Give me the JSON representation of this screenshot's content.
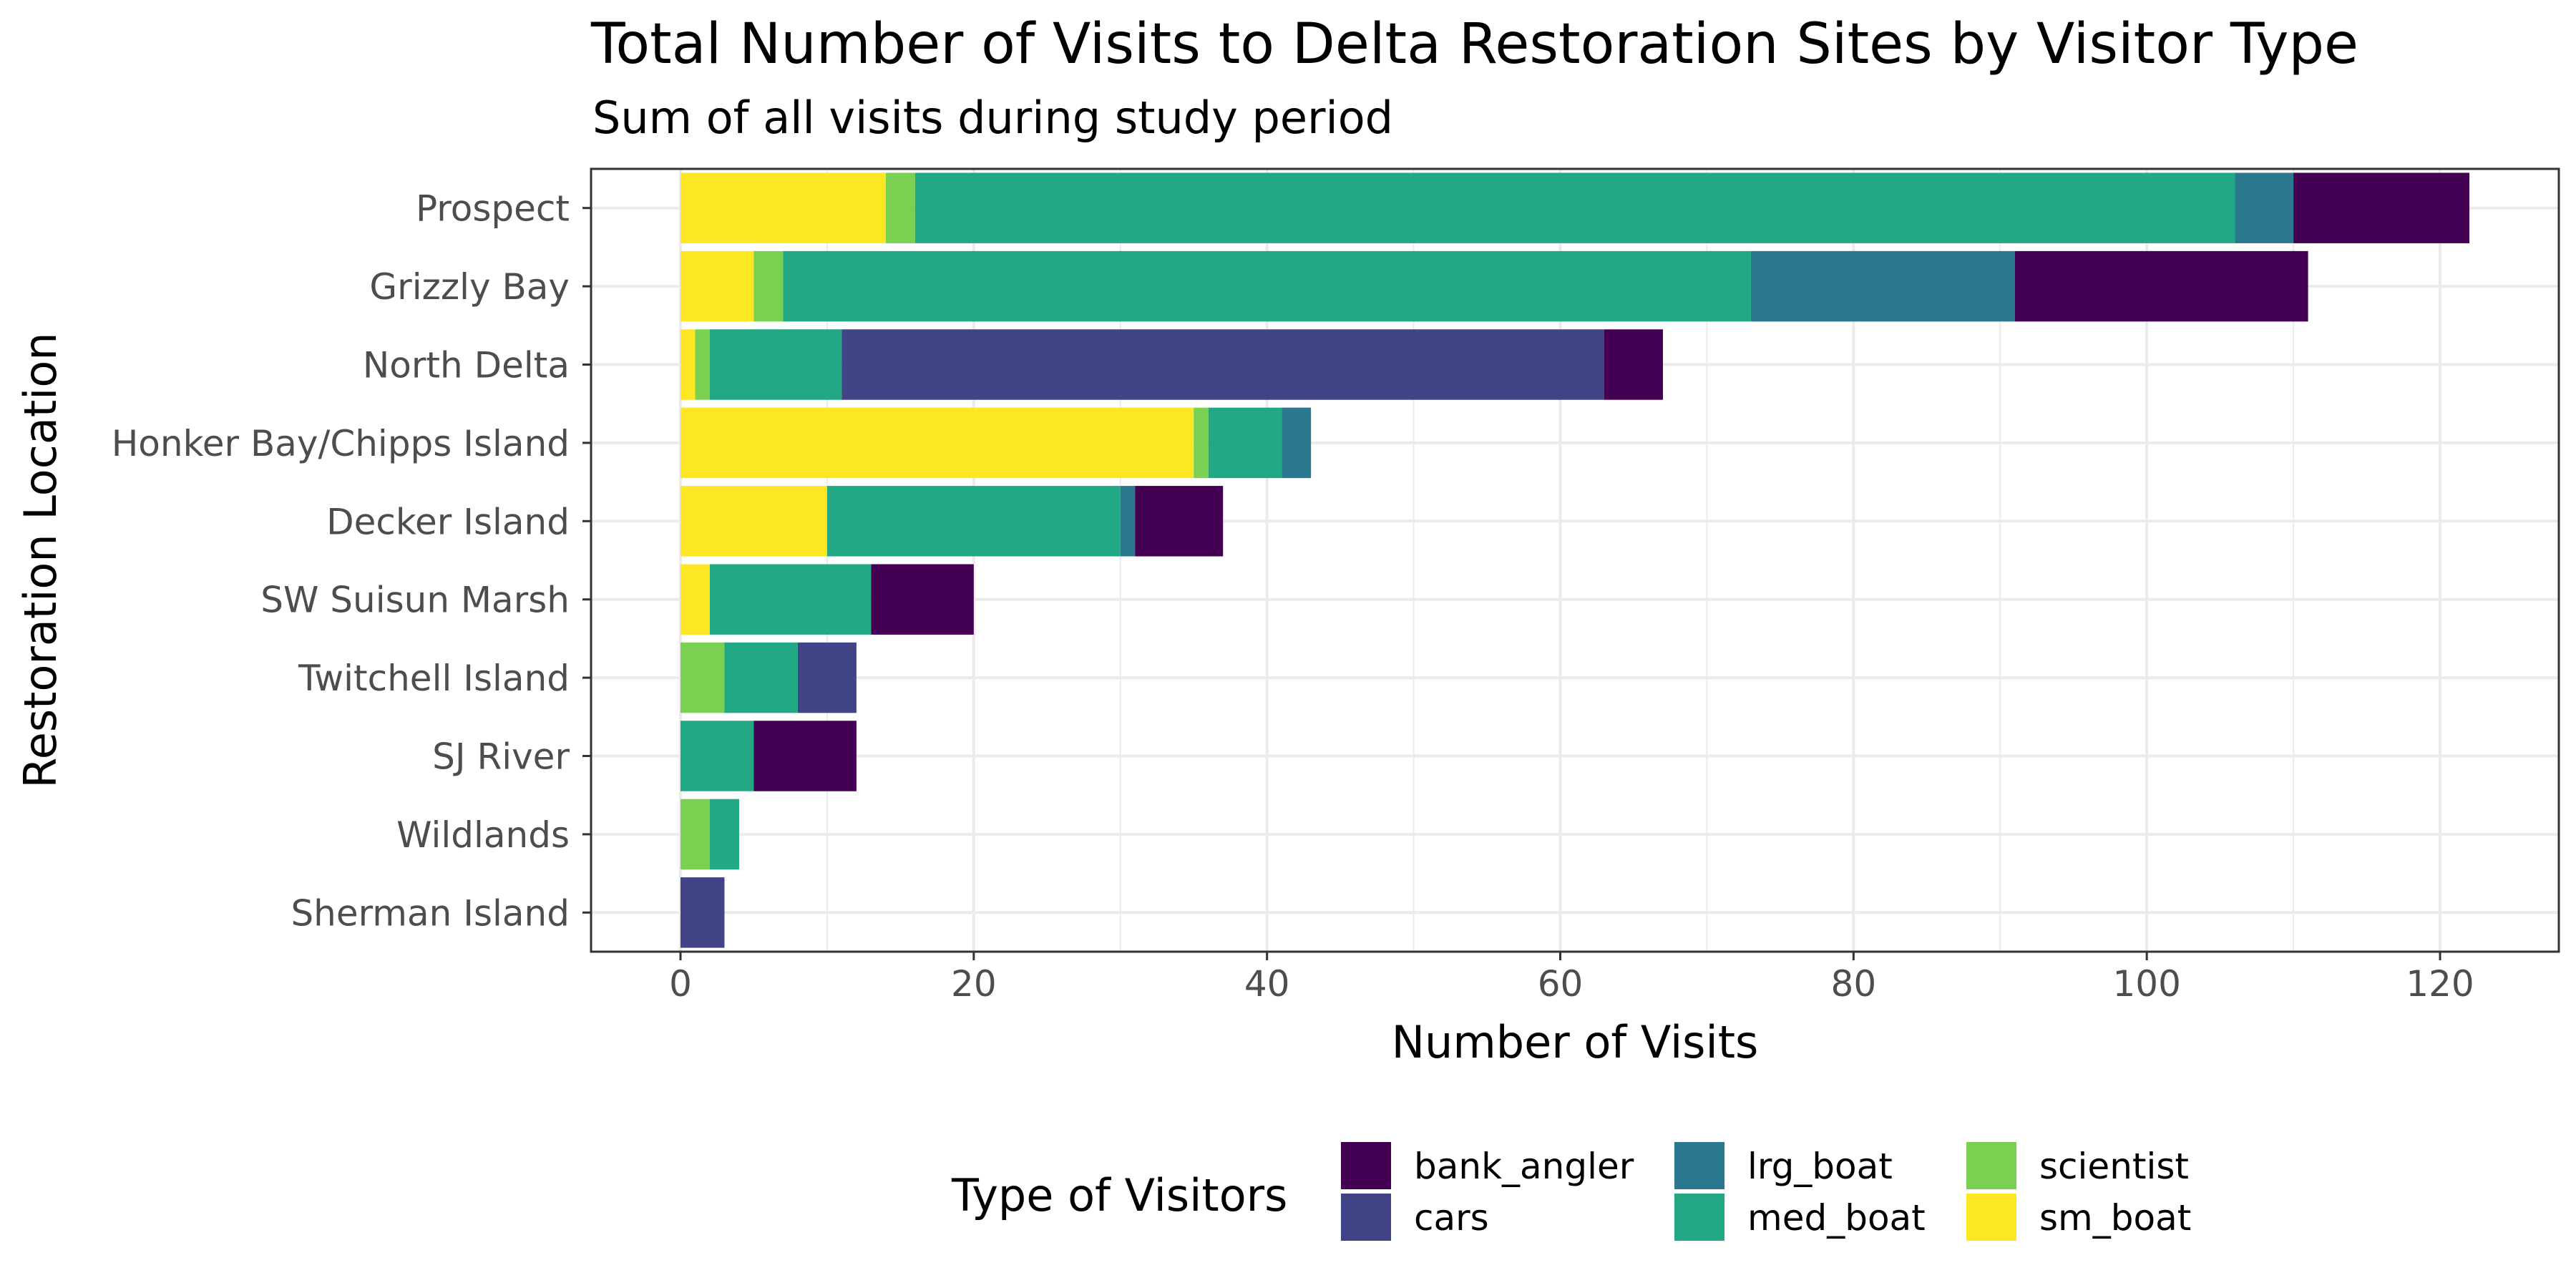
{
  "chart_data": {
    "type": "bar",
    "orientation": "horizontal",
    "stacked": true,
    "title": "Total Number of Visits to Delta Restoration Sites by Visitor Type",
    "subtitle": "Sum of all visits during study period",
    "xlabel": "Number of Visits",
    "ylabel": "Restoration Location",
    "xlim": [
      -6.1,
      128.1
    ],
    "xticks": [
      0,
      20,
      40,
      60,
      80,
      100,
      120
    ],
    "grid": true,
    "legend_title": "Type of Visitors",
    "legend_position": "bottom",
    "stack_order": [
      "sm_boat",
      "scientist",
      "med_boat",
      "cars",
      "lrg_boat",
      "bank_angler"
    ],
    "categories": [
      "Prospect",
      "Grizzly Bay",
      "North Delta",
      "Honker Bay/Chipps Island",
      "Decker Island",
      "SW Suisun Marsh",
      "Twitchell Island",
      "SJ River",
      "Wildlands",
      "Sherman Island"
    ],
    "series": [
      {
        "name": "bank_angler",
        "color": "#440154",
        "values": [
          12,
          20,
          4,
          0,
          6,
          7,
          0,
          7,
          0,
          0
        ]
      },
      {
        "name": "cars",
        "color": "#414487",
        "values": [
          0,
          0,
          52,
          0,
          0,
          0,
          4,
          0,
          0,
          3
        ]
      },
      {
        "name": "lrg_boat",
        "color": "#2A788E",
        "values": [
          4,
          18,
          0,
          2,
          1,
          0,
          0,
          0,
          0,
          0
        ]
      },
      {
        "name": "med_boat",
        "color": "#22A884",
        "values": [
          90,
          66,
          9,
          5,
          20,
          11,
          5,
          5,
          2,
          0
        ]
      },
      {
        "name": "scientist",
        "color": "#7AD151",
        "values": [
          2,
          2,
          1,
          1,
          0,
          0,
          3,
          0,
          2,
          0
        ]
      },
      {
        "name": "sm_boat",
        "color": "#FDE725",
        "values": [
          14,
          5,
          1,
          35,
          10,
          2,
          0,
          0,
          0,
          0
        ]
      }
    ]
  }
}
